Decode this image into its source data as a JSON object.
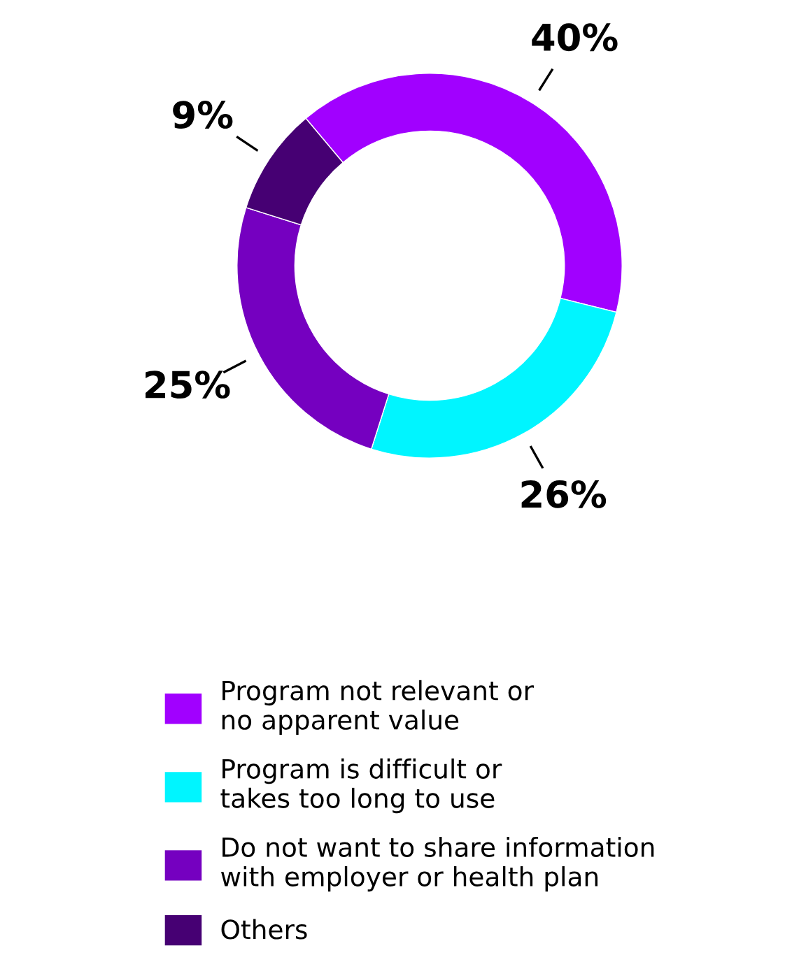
{
  "chart_data": {
    "type": "donut",
    "categories": [
      "Program not relevant or\nno apparent value",
      "Program is difficult or\ntakes too long to use",
      "Do not want to share information\nwith employer or health plan",
      "Others"
    ],
    "values": [
      40,
      26,
      25,
      9
    ],
    "colors": [
      "#a100ff",
      "#00f5ff",
      "#7500c0",
      "#460073"
    ],
    "value_labels": [
      "40%",
      "26%",
      "25%",
      "9%"
    ],
    "legend": "bottom"
  }
}
